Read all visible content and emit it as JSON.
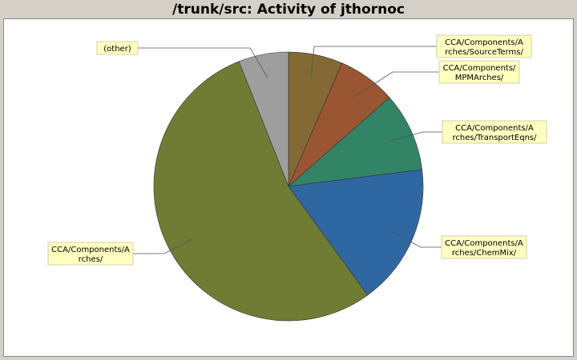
{
  "chart_data": {
    "type": "pie",
    "title": "/trunk/src: Activity of jthornoc",
    "start_angle_deg": 90,
    "direction": "clockwise",
    "slices": [
      {
        "label_lines": [
          "CCA/Components/A",
          "rches/SourceTerms/"
        ],
        "value": 6.5,
        "color": "#836a35"
      },
      {
        "label_lines": [
          "CCA/Components/",
          "MPMArches/"
        ],
        "value": 7.0,
        "color": "#9a5533"
      },
      {
        "label_lines": [
          "CCA/Components/A",
          "rches/TransportEqns/"
        ],
        "value": 9.5,
        "color": "#318465"
      },
      {
        "label_lines": [
          "CCA/Components/A",
          "rches/ChemMix/"
        ],
        "value": 17.0,
        "color": "#2f67a2"
      },
      {
        "label_lines": [
          "CCA/Components/A",
          "rches/"
        ],
        "value": 54.0,
        "color": "#707c34"
      },
      {
        "label_lines": [
          "(other)"
        ],
        "value": 6.0,
        "color": "#9e9e9e"
      }
    ]
  }
}
